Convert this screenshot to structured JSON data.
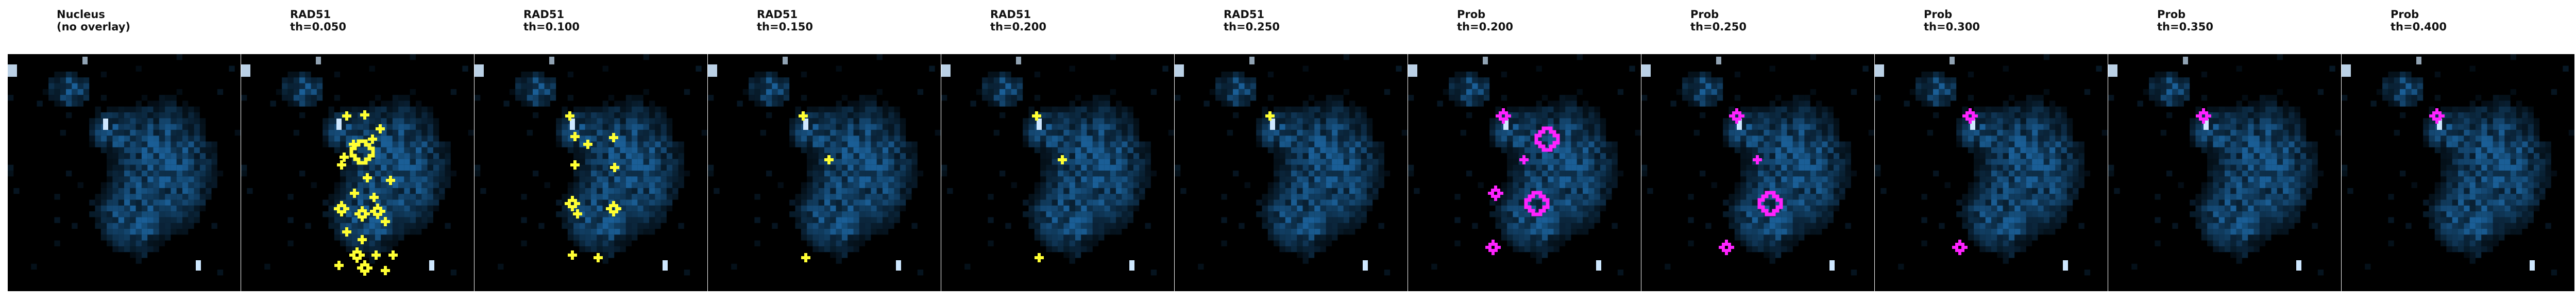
{
  "colors": {
    "image_background": "#000000",
    "nucleus_signal": "#1f6fb0",
    "rad51_overlay": "#ffff33",
    "prob_overlay": "#ff22ff"
  },
  "panels": [
    {
      "title": "Nucleus",
      "subtitle": "(no overlay)",
      "overlay": "none",
      "overlay_color": ""
    },
    {
      "title": "RAD51",
      "subtitle": "th=0.050",
      "overlay": "rad51",
      "overlay_color": "#ffff33"
    },
    {
      "title": "RAD51",
      "subtitle": "th=0.100",
      "overlay": "rad51",
      "overlay_color": "#ffff33"
    },
    {
      "title": "RAD51",
      "subtitle": "th=0.150",
      "overlay": "rad51",
      "overlay_color": "#ffff33"
    },
    {
      "title": "RAD51",
      "subtitle": "th=0.200",
      "overlay": "rad51",
      "overlay_color": "#ffff33"
    },
    {
      "title": "RAD51",
      "subtitle": "th=0.250",
      "overlay": "rad51",
      "overlay_color": "#ffff33"
    },
    {
      "title": "Prob",
      "subtitle": "th=0.200",
      "overlay": "prob",
      "overlay_color": "#ff22ff"
    },
    {
      "title": "Prob",
      "subtitle": "th=0.250",
      "overlay": "prob",
      "overlay_color": "#ff22ff"
    },
    {
      "title": "Prob",
      "subtitle": "th=0.300",
      "overlay": "prob",
      "overlay_color": "#ff22ff"
    },
    {
      "title": "Prob",
      "subtitle": "th=0.350",
      "overlay": "prob",
      "overlay_color": "#ff22ff"
    },
    {
      "title": "Prob",
      "subtitle": "th=0.400",
      "overlay": "prob",
      "overlay_color": "#ff22ff"
    }
  ]
}
